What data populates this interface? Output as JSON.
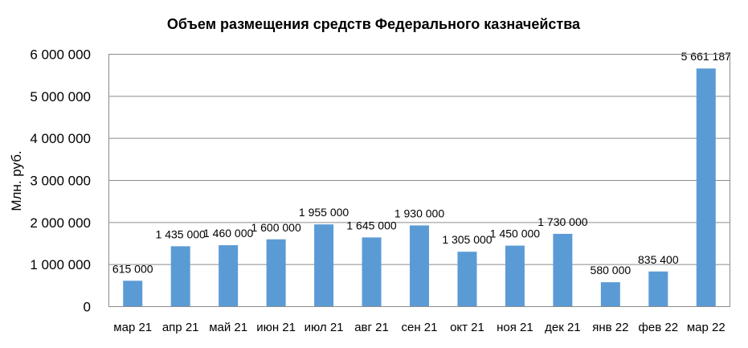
{
  "chart_data": {
    "type": "bar",
    "title": "Объем размещения средств Федерального казначейства",
    "ylabel": "Млн. руб.",
    "xlabel": "",
    "ylim": [
      0,
      6000000
    ],
    "yticks": [
      "0",
      "1 000 000",
      "2 000 000",
      "3 000 000",
      "4 000 000",
      "5 000 000",
      "6 000 000"
    ],
    "grid": true,
    "legend": "none",
    "bar_color": "#5b9bd5",
    "categories": [
      "мар 21",
      "апр 21",
      "май 21",
      "июн 21",
      "июл 21",
      "авг 21",
      "сен 21",
      "окт 21",
      "ноя 21",
      "дек 21",
      "янв 22",
      "фев 22",
      "мар 22"
    ],
    "values": [
      615000,
      1435000,
      1460000,
      1600000,
      1955000,
      1645000,
      1930000,
      1305000,
      1450000,
      1730000,
      580000,
      835400,
      5661187
    ],
    "data_labels": [
      "615 000",
      "1 435 000",
      "1 460 000",
      "1 600 000",
      "1 955 000",
      "1 645 000",
      "1 930 000",
      "1 305 000",
      "1 450 000",
      "1 730 000",
      "580 000",
      "835 400",
      "5 661 187"
    ]
  }
}
